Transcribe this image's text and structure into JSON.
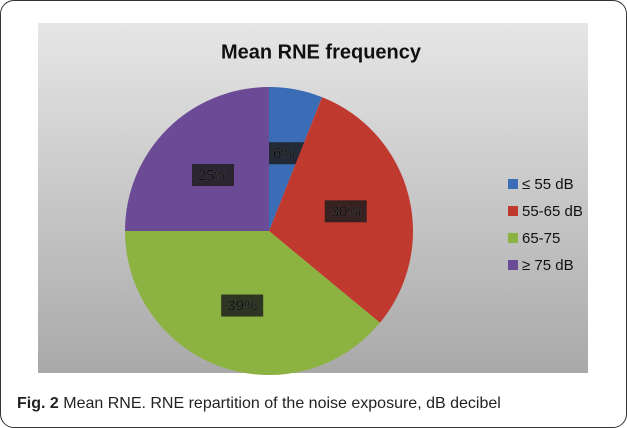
{
  "chart_data": {
    "type": "pie",
    "title": "Mean RNE frequency",
    "categories": [
      "≤ 55 dB",
      "55-65 dB",
      "65-75",
      "≥ 75 dB"
    ],
    "values": [
      6,
      30,
      39,
      25
    ],
    "value_labels": [
      "6%",
      "30%",
      "39%",
      "25%"
    ],
    "colors": [
      "#3b6cb6",
      "#c0392f",
      "#8cb241",
      "#6b4b95"
    ],
    "legend": "right"
  },
  "caption": {
    "label": "Fig. 2",
    "text": "Mean RNE. RNE repartition of the noise exposure, dB decibel"
  }
}
